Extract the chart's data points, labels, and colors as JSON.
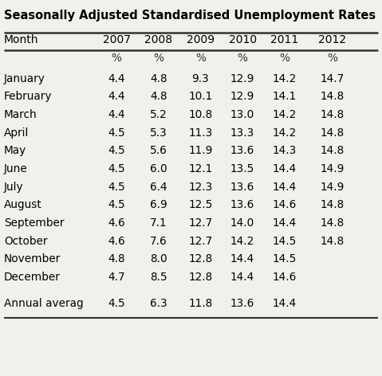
{
  "title": "Seasonally Adjusted Standardised Unemployment Rates",
  "columns": [
    "Month",
    "2007",
    "2008",
    "2009",
    "2010",
    "2011",
    "2012"
  ],
  "percent_row": [
    "",
    "%",
    "%",
    "%",
    "%",
    "%",
    "%"
  ],
  "rows": [
    [
      "January",
      "4.4",
      "4.8",
      "9.3",
      "12.9",
      "14.2",
      "14.7"
    ],
    [
      "February",
      "4.4",
      "4.8",
      "10.1",
      "12.9",
      "14.1",
      "14.8"
    ],
    [
      "March",
      "4.4",
      "5.2",
      "10.8",
      "13.0",
      "14.2",
      "14.8"
    ],
    [
      "April",
      "4.5",
      "5.3",
      "11.3",
      "13.3",
      "14.2",
      "14.8"
    ],
    [
      "May",
      "4.5",
      "5.6",
      "11.9",
      "13.6",
      "14.3",
      "14.8"
    ],
    [
      "June",
      "4.5",
      "6.0",
      "12.1",
      "13.5",
      "14.4",
      "14.9"
    ],
    [
      "July",
      "4.5",
      "6.4",
      "12.3",
      "13.6",
      "14.4",
      "14.9"
    ],
    [
      "August",
      "4.5",
      "6.9",
      "12.5",
      "13.6",
      "14.6",
      "14.8"
    ],
    [
      "September",
      "4.6",
      "7.1",
      "12.7",
      "14.0",
      "14.4",
      "14.8"
    ],
    [
      "October",
      "4.6",
      "7.6",
      "12.7",
      "14.2",
      "14.5",
      "14.8"
    ],
    [
      "November",
      "4.8",
      "8.0",
      "12.8",
      "14.4",
      "14.5",
      ""
    ],
    [
      "December",
      "4.7",
      "8.5",
      "12.8",
      "14.4",
      "14.6",
      ""
    ]
  ],
  "annual_row": [
    "Annual averag",
    "4.5",
    "6.3",
    "11.8",
    "13.6",
    "14.4",
    ""
  ],
  "bg_color": "#f0f0ec",
  "text_color": "#000000",
  "title_fontsize": 10.5,
  "header_fontsize": 10,
  "data_fontsize": 9.8
}
